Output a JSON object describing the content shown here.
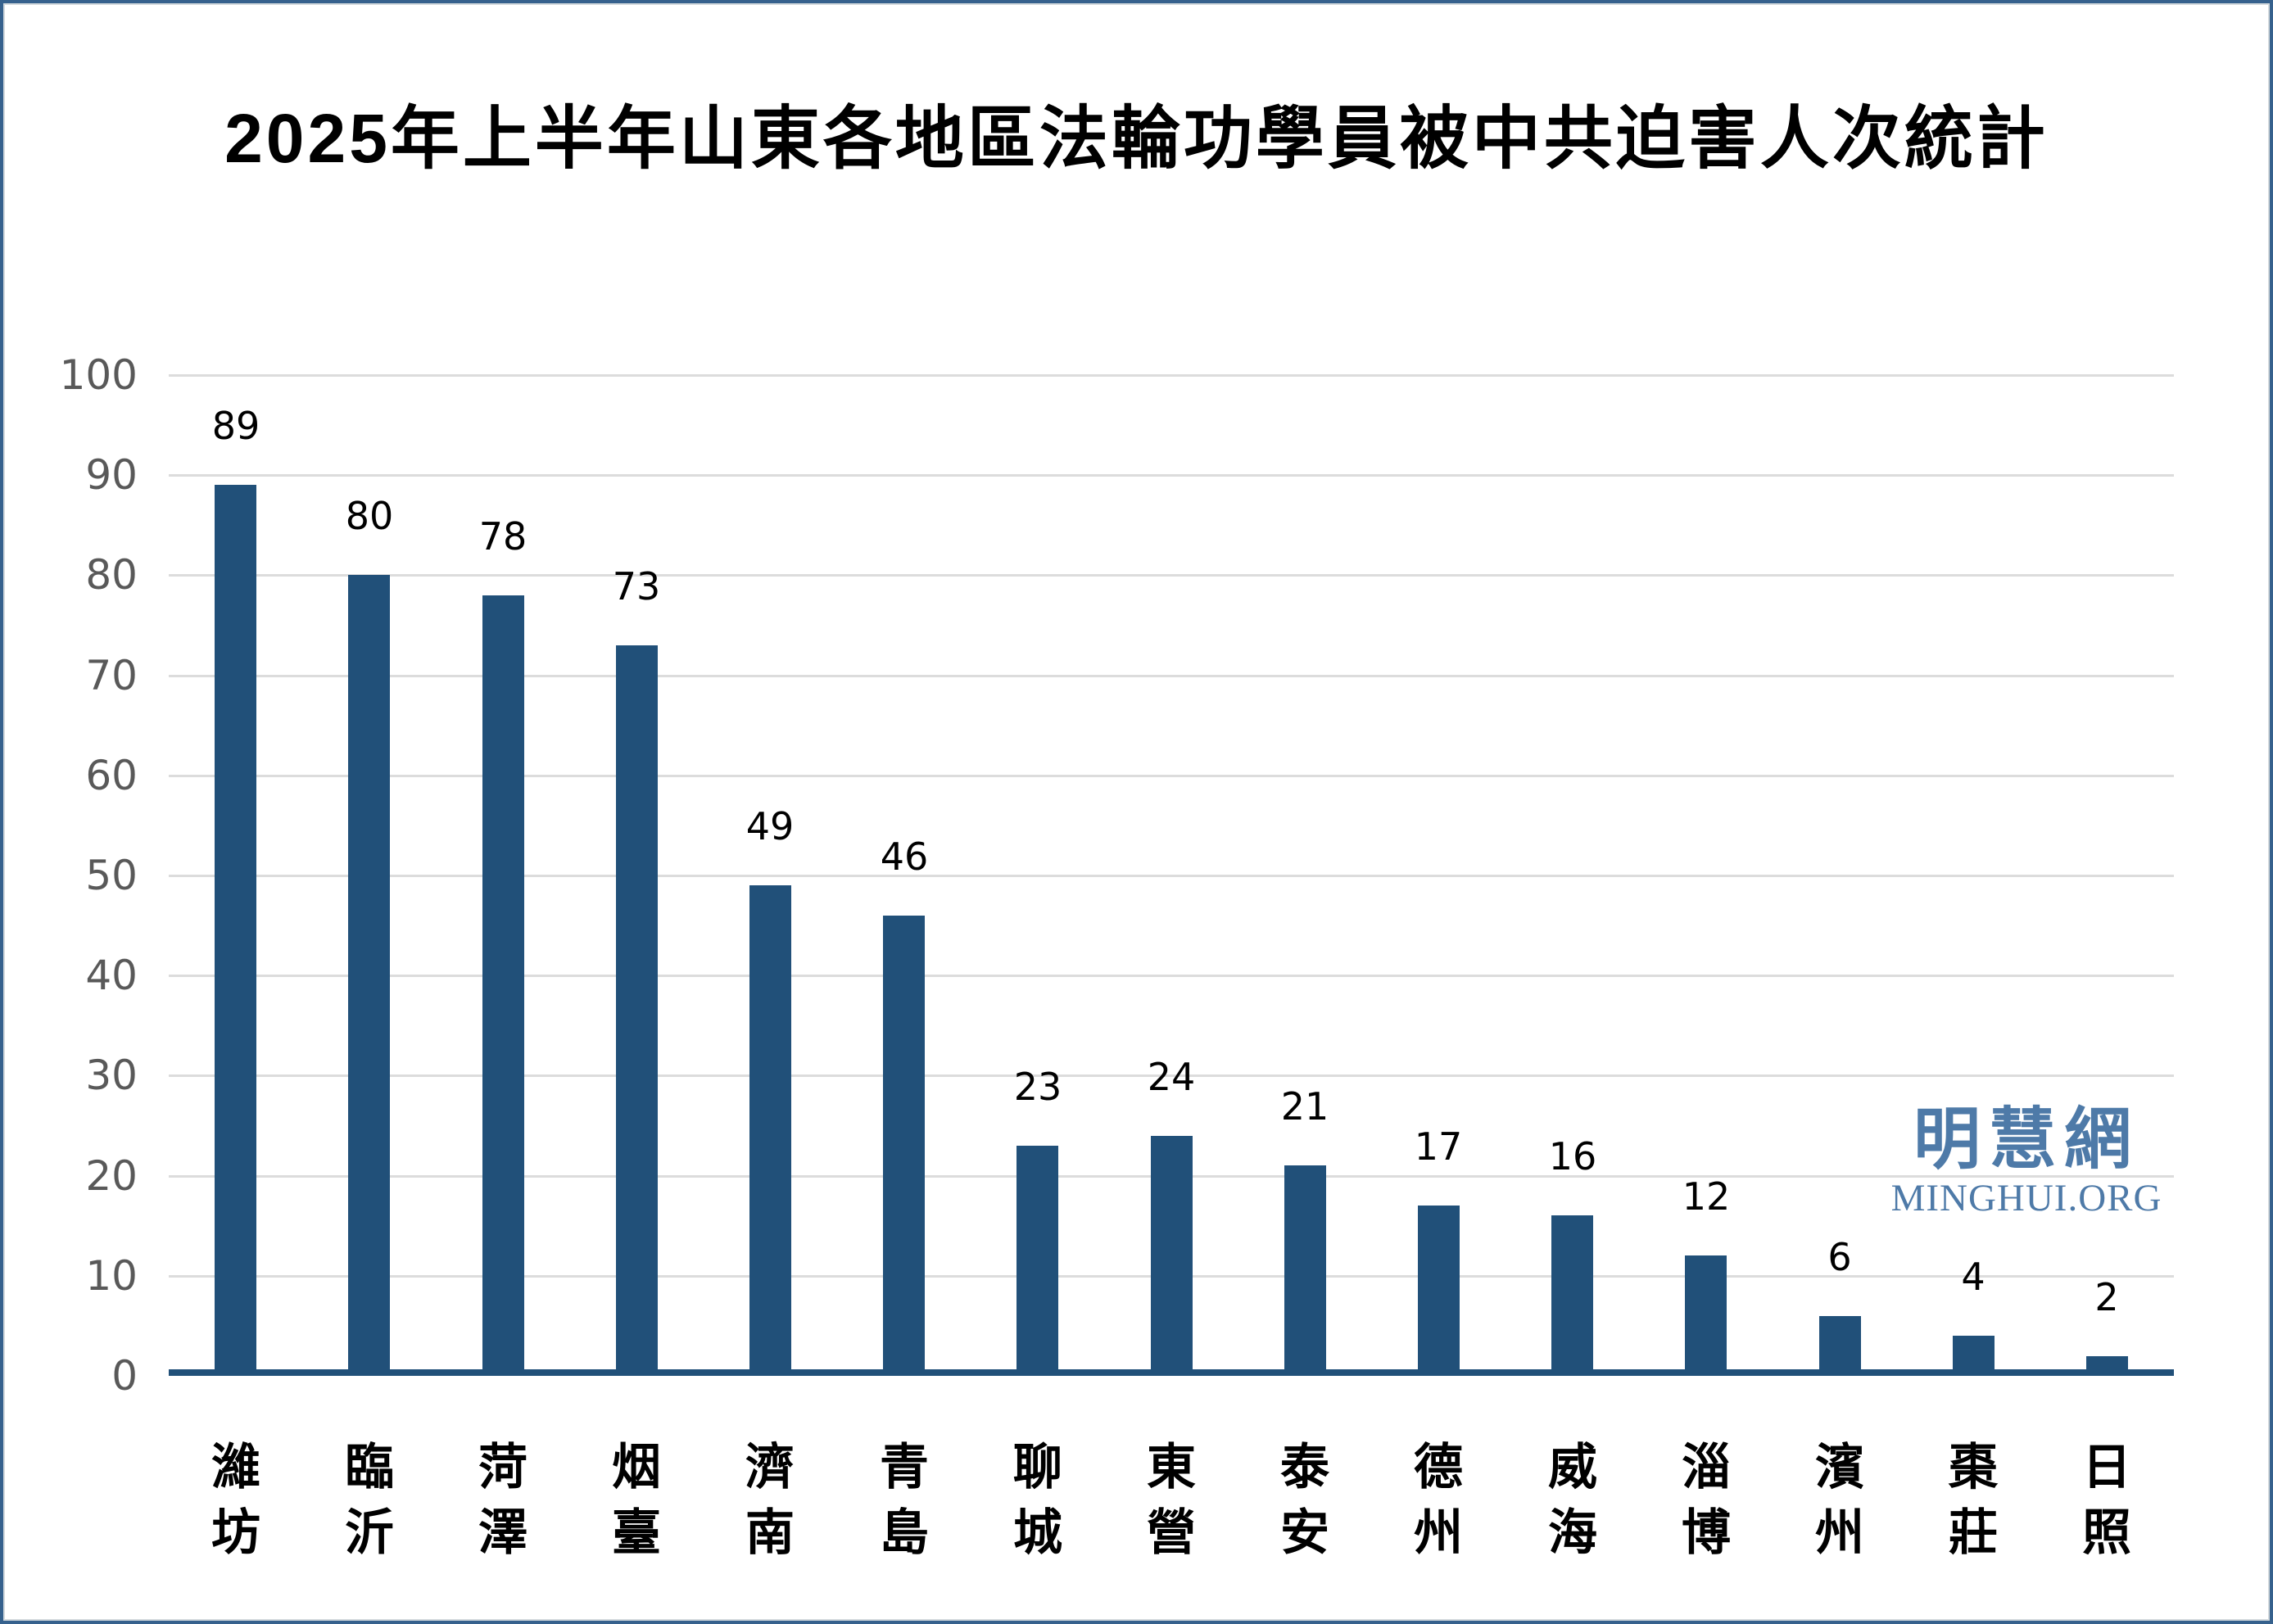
{
  "title": "2025年上半年山東各地區法輪功學員被中共迫害人次統計",
  "watermark": {
    "cjk": "明慧網",
    "latin": "MINGHUI.ORG"
  },
  "colors": {
    "bar": "#215079",
    "axis_baseline": "#215079",
    "gridline": "#dcdcdc",
    "tick_text": "#595959",
    "value_label_text": "#000000",
    "watermark_text": "#4e7aa8",
    "page_border": "#36618d"
  },
  "chart_data": {
    "type": "bar",
    "title": "2025年上半年山東各地區法輪功學員被中共迫害人次統計",
    "categories": [
      "濰坊",
      "臨沂",
      "菏澤",
      "烟臺",
      "濟南",
      "青島",
      "聊城",
      "東營",
      "泰安",
      "德州",
      "威海",
      "淄博",
      "濱州",
      "棗莊",
      "日照"
    ],
    "values": [
      89,
      80,
      78,
      73,
      49,
      46,
      23,
      24,
      21,
      17,
      16,
      12,
      6,
      4,
      2
    ],
    "xlabel": "",
    "ylabel": "",
    "ylim": [
      0,
      100
    ],
    "ytick_step": 10,
    "ytick_labels": [
      "0",
      "10",
      "20",
      "30",
      "40",
      "50",
      "60",
      "70",
      "80",
      "90",
      "100"
    ],
    "grid": true,
    "gridline_orientation": "horizontal",
    "data_labels": true,
    "legend_position": "none",
    "category_label_orientation": "vertical-stacked"
  }
}
